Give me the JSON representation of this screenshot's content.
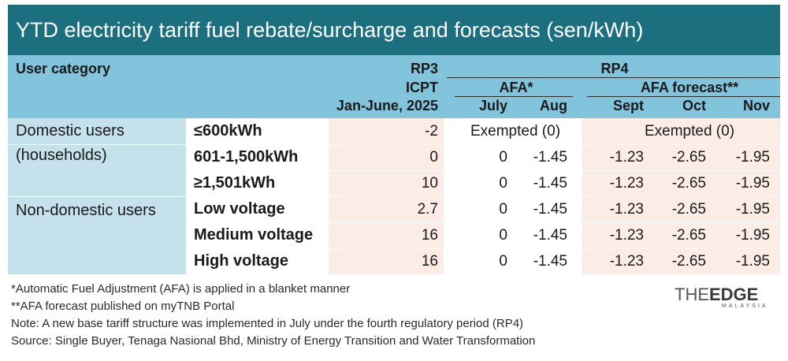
{
  "title": "YTD electricity tariff fuel rebate/surcharge and forecasts (sen/kWh)",
  "header": {
    "user_category": "User category",
    "rp3": "RP3",
    "icpt": "ICPT",
    "jan_june": "Jan-June, 2025",
    "rp4": "RP4",
    "afa": "AFA*",
    "afa_forecast": "AFA forecast**",
    "months": [
      "July",
      "Aug",
      "Sept",
      "Oct",
      "Nov"
    ]
  },
  "categories": [
    "Domestic users",
    "(households)",
    "Non-domestic users"
  ],
  "rows": [
    {
      "sub": "≤600kWh",
      "icpt": "-2",
      "exempt_afa": "Exempted (0)",
      "exempt_forecast": "Exempted (0)"
    },
    {
      "sub": "601-1,500kWh",
      "icpt": "0",
      "july": "0",
      "aug": "-1.45",
      "sept": "-1.23",
      "oct": "-2.65",
      "nov": "-1.95"
    },
    {
      "sub": "≥1,501kWh",
      "icpt": "10",
      "july": "0",
      "aug": "-1.45",
      "sept": "-1.23",
      "oct": "-2.65",
      "nov": "-1.95"
    },
    {
      "sub": "Low voltage",
      "icpt": "2.7",
      "july": "0",
      "aug": "-1.45",
      "sept": "-1.23",
      "oct": "-2.65",
      "nov": "-1.95"
    },
    {
      "sub": "Medium voltage",
      "icpt": "16",
      "july": "0",
      "aug": "-1.45",
      "sept": "-1.23",
      "oct": "-2.65",
      "nov": "-1.95"
    },
    {
      "sub": "High voltage",
      "icpt": "16",
      "july": "0",
      "aug": "-1.45",
      "sept": "-1.23",
      "oct": "-2.65",
      "nov": "-1.95"
    }
  ],
  "notes": [
    "*Automatic Fuel Adjustment (AFA) is applied in a blanket manner",
    "**AFA forecast published on myTNB Portal",
    "Note: A new base tariff structure was implemented in July under the fourth regulatory period (RP4)",
    "Source: Single Buyer, Tenaga Nasional Bhd, Ministry of Energy Transition and Water Transformation"
  ],
  "logo": {
    "the": "THE",
    "edge": "EDGE",
    "sub": "MALAYSIA"
  },
  "colors": {
    "title_bg": "#1b6f7e",
    "header_bg": "#82c4dc",
    "category_bg": "#c4e1ec",
    "band_bg": "#fbece5"
  }
}
